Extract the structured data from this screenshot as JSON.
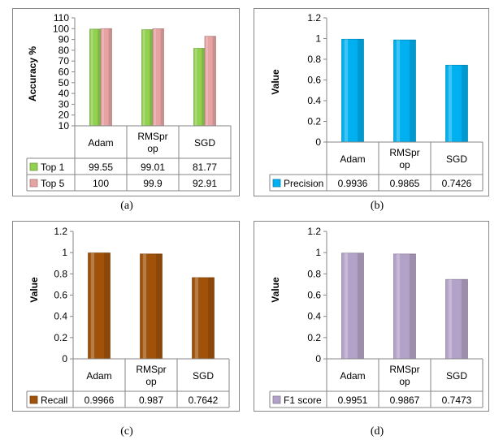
{
  "chart_data": [
    {
      "type": "bar",
      "ylabel": "Accuracy %",
      "ylim": [
        10,
        110
      ],
      "yticks": [
        10,
        20,
        30,
        40,
        50,
        60,
        70,
        80,
        90,
        100,
        110
      ],
      "categories": [
        "Adam",
        "RMSprop",
        "SGD"
      ],
      "category_lines": [
        [
          "Adam"
        ],
        [
          "RMSpr",
          "op"
        ],
        [
          "SGD"
        ]
      ],
      "series": [
        {
          "name": "Top 1",
          "values": [
            99.55,
            99.01,
            81.77
          ],
          "labels": [
            "99.55",
            "99.01",
            "81.77"
          ],
          "color": "#92d050"
        },
        {
          "name": "Top 5",
          "values": [
            100,
            99.9,
            92.91
          ],
          "labels": [
            "100",
            "99.9",
            "92.91"
          ],
          "color": "#e6a3a3"
        }
      ],
      "grid": false,
      "legend": "data-table",
      "caption": "(a)"
    },
    {
      "type": "bar",
      "ylabel": "Value",
      "ylim": [
        0,
        1.2
      ],
      "yticks": [
        0,
        0.2,
        0.4,
        0.6,
        0.8,
        1,
        1.2
      ],
      "categories": [
        "Adam",
        "RMSprop",
        "SGD"
      ],
      "category_lines": [
        [
          "Adam"
        ],
        [
          "RMSpr",
          "op"
        ],
        [
          "SGD"
        ]
      ],
      "series": [
        {
          "name": "Precision",
          "values": [
            0.9936,
            0.9865,
            0.7426
          ],
          "labels": [
            "0.9936",
            "0.9865",
            "0.7426"
          ],
          "color": "#00b0f0"
        }
      ],
      "grid": false,
      "legend": "data-table",
      "caption": "(b)"
    },
    {
      "type": "bar",
      "ylabel": "Value",
      "ylim": [
        0,
        1.2
      ],
      "yticks": [
        0,
        0.2,
        0.4,
        0.6,
        0.8,
        1,
        1.2
      ],
      "categories": [
        "Adam",
        "RMSprop",
        "SGD"
      ],
      "category_lines": [
        [
          "Adam"
        ],
        [
          "RMSpr",
          "op"
        ],
        [
          "SGD"
        ]
      ],
      "series": [
        {
          "name": "Recall",
          "values": [
            0.9966,
            0.987,
            0.7642
          ],
          "labels": [
            "0.9966",
            "0.987",
            "0.7642"
          ],
          "color": "#a0520a"
        }
      ],
      "grid": false,
      "legend": "data-table",
      "caption": "(c)"
    },
    {
      "type": "bar",
      "ylabel": "Value",
      "ylim": [
        0,
        1.2
      ],
      "yticks": [
        0,
        0.2,
        0.4,
        0.6,
        0.8,
        1,
        1.2
      ],
      "categories": [
        "Adam",
        "RMSprop",
        "SGD"
      ],
      "category_lines": [
        [
          "Adam"
        ],
        [
          "RMSpr",
          "op"
        ],
        [
          "SGD"
        ]
      ],
      "series": [
        {
          "name": "F1 score",
          "values": [
            0.9951,
            0.9867,
            0.7473
          ],
          "labels": [
            "0.9951",
            "0.9867",
            "0.7473"
          ],
          "color": "#b3a2c7"
        }
      ],
      "grid": false,
      "legend": "data-table",
      "caption": "(d)"
    }
  ]
}
